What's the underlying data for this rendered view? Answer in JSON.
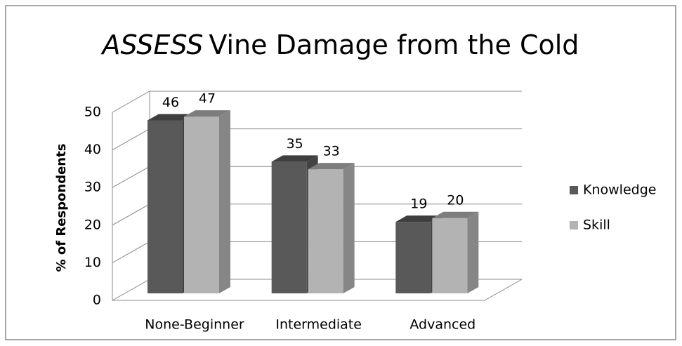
{
  "chart_data": {
    "type": "bar3d",
    "title_italic": "ASSESS",
    "title": "Vine Damage from the Cold",
    "y_label": "% of Respondents",
    "categories": [
      "None-Beginner",
      "Intermediate",
      "Advanced"
    ],
    "series": [
      {
        "name": "Knowledge",
        "color": "#595959",
        "values": [
          46,
          35,
          19
        ]
      },
      {
        "name": "Skill",
        "color": "#b3b3b3",
        "values": [
          47,
          33,
          20
        ]
      }
    ],
    "ylim": [
      0,
      50
    ],
    "yticks": [
      0,
      10,
      20,
      30,
      40,
      50
    ],
    "grid": true,
    "legend": "right"
  }
}
